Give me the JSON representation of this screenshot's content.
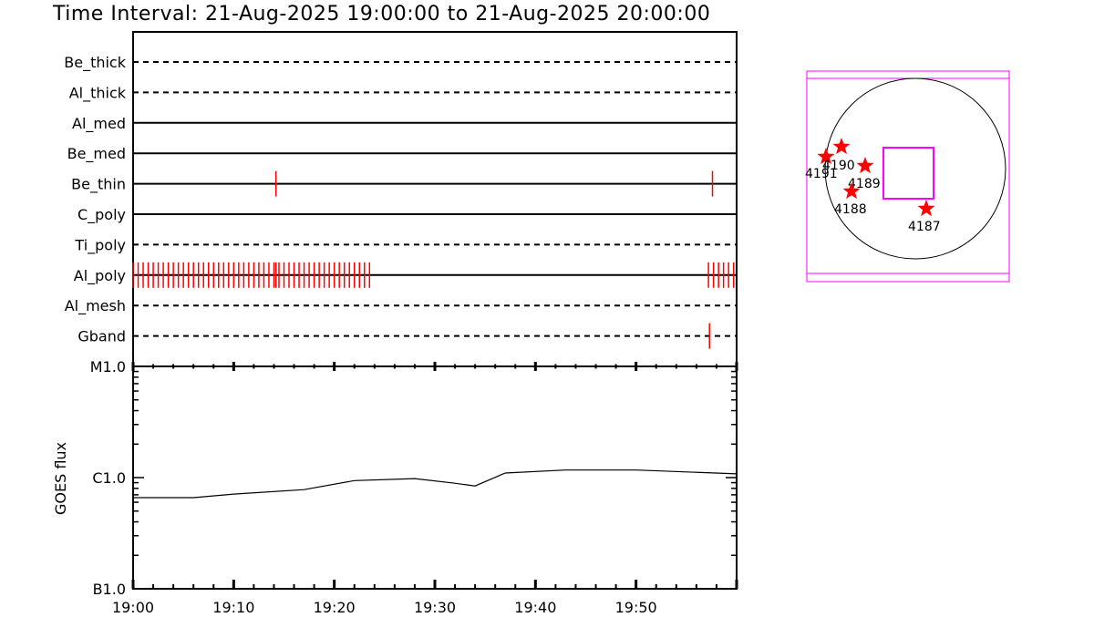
{
  "title": "Time Interval: 21-Aug-2025 19:00:00 to 21-Aug-2025 20:00:00",
  "colors": {
    "axis": "#000000",
    "event": "#ff0000",
    "fov": "#ff00ff",
    "star": "#ff0000"
  },
  "chart_data": [
    {
      "type": "timeline",
      "x_range": [
        "19:00",
        "20:00"
      ],
      "x_ticks": [
        "19:00",
        "19:10",
        "19:20",
        "19:30",
        "19:40",
        "19:50"
      ],
      "rows": [
        {
          "label": "Be_thick",
          "style": "dashed",
          "events": []
        },
        {
          "label": "Al_thick",
          "style": "dashed",
          "events": []
        },
        {
          "label": "Al_med",
          "style": "solid",
          "events": []
        },
        {
          "label": "Be_med",
          "style": "solid",
          "events": []
        },
        {
          "label": "Be_thin",
          "style": "solid",
          "events": [
            "19:14:12",
            "19:57:36"
          ]
        },
        {
          "label": "C_poly",
          "style": "solid",
          "events": []
        },
        {
          "label": "Ti_poly",
          "style": "dashed",
          "events": []
        },
        {
          "label": "Al_poly",
          "style": "solid",
          "events_series": {
            "start": "19:00:00",
            "end": "19:23:30",
            "cadence_s": 30
          },
          "events": [
            "19:14:12",
            "19:57:12",
            "19:57:42",
            "19:58:12",
            "19:58:42",
            "19:59:12",
            "19:59:42"
          ]
        },
        {
          "label": "Al_mesh",
          "style": "dashed",
          "events": []
        },
        {
          "label": "Gband",
          "style": "dashed",
          "events": [
            "19:57:18"
          ]
        }
      ]
    },
    {
      "type": "line",
      "ylabel": "GOES flux",
      "y_scale": "log",
      "y_range": [
        1e-07,
        1e-05
      ],
      "y_ticks": [
        {
          "label": "B1.0",
          "value": 1e-07
        },
        {
          "label": "C1.0",
          "value": 1e-06
        },
        {
          "label": "M1.0",
          "value": 1e-05
        }
      ],
      "x_ticks": [
        "19:00",
        "19:10",
        "19:20",
        "19:30",
        "19:40",
        "19:50"
      ],
      "x": [
        "19:00",
        "19:06",
        "19:10",
        "19:17",
        "19:22",
        "19:28",
        "19:32",
        "19:34",
        "19:37",
        "19:43",
        "19:50",
        "20:00"
      ],
      "values": [
        6.6e-07,
        6.6e-07,
        7.1e-07,
        7.8e-07,
        9.4e-07,
        9.8e-07,
        8.9e-07,
        8.4e-07,
        1.1e-06,
        1.17e-06,
        1.17e-06,
        1.08e-06
      ]
    }
  ],
  "sun_map": {
    "active_regions": [
      {
        "label": "4191"
      },
      {
        "label": "4190"
      },
      {
        "label": "4189"
      },
      {
        "label": "4188"
      },
      {
        "label": "4187"
      }
    ]
  }
}
